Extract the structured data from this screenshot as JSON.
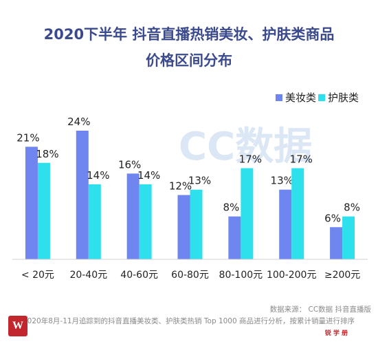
{
  "title_line1": "2020下半年 抖音直播热销美妆、护肤类商品",
  "title_line2": "价格区间分布",
  "watermark": "CC数据",
  "source": "数据来源： CC数据 抖音直播版",
  "note": "基于2020年8月-11月追踪到的抖音直播美妆类、护肤类热销 Top 1000 商品进行分析，按累计销量进行排序",
  "logo_text": "W",
  "brand_text": "锐 学 册",
  "colors": {
    "makeup": "#6f85ef",
    "skincare": "#2ee0ec"
  },
  "chart_data": {
    "type": "bar",
    "title": "2020下半年 抖音直播热销美妆、护肤类商品价格区间分布",
    "categories": [
      "< 20元",
      "20-40元",
      "40-60元",
      "60-80元",
      "80-100元",
      "100-200元",
      "≥200元"
    ],
    "series": [
      {
        "name": "美妆类",
        "values": [
          21,
          24,
          16,
          12,
          8,
          13,
          6
        ],
        "labels": [
          "21%",
          "24%",
          "16%",
          "12%",
          "8%",
          "13%",
          "6%"
        ]
      },
      {
        "name": "护肤类",
        "values": [
          18,
          14,
          14,
          13,
          17,
          17,
          8
        ],
        "labels": [
          "18%",
          "14%",
          "14%",
          "13%",
          "17%",
          "17%",
          "8%"
        ]
      }
    ],
    "unit": "%",
    "ylim": [
      0,
      24
    ],
    "legend": "top-right",
    "grid": false
  }
}
